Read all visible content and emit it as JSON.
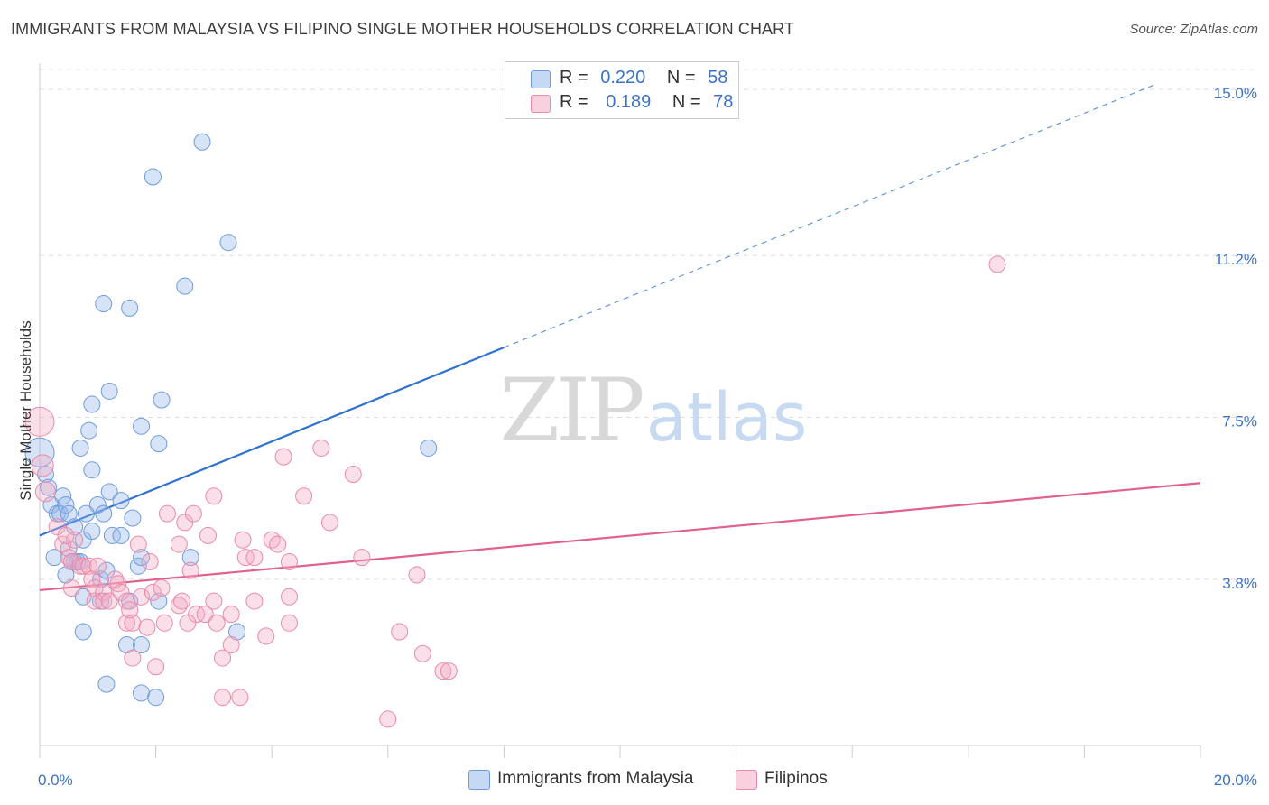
{
  "title": "IMMIGRANTS FROM MALAYSIA VS FILIPINO SINGLE MOTHER HOUSEHOLDS CORRELATION CHART",
  "source": "Source: ZipAtlas.com",
  "watermark": {
    "zip": "ZIP",
    "atlas": "atlas"
  },
  "legend": {
    "r_label": "R =",
    "n_label": "N =",
    "rows": [
      {
        "name": "Immigrants from Malaysia",
        "r": "0.220",
        "n": "58"
      },
      {
        "name": "Filipinos",
        "r": "0.189",
        "n": "78"
      }
    ]
  },
  "chart_data": {
    "type": "scatter",
    "title": "IMMIGRANTS FROM MALAYSIA VS FILIPINO SINGLE MOTHER HOUSEHOLDS CORRELATION CHART",
    "xlabel": "",
    "ylabel": "Single Mother Households",
    "xlim": [
      0,
      20
    ],
    "ylim": [
      0,
      15.6
    ],
    "x_tick_labels": [
      {
        "value": 0,
        "label": "0.0%"
      },
      {
        "value": 20,
        "label": "20.0%"
      }
    ],
    "y_tick_labels": [
      {
        "value": 3.8,
        "label": "3.8%"
      },
      {
        "value": 7.5,
        "label": "7.5%"
      },
      {
        "value": 11.2,
        "label": "11.2%"
      },
      {
        "value": 15.0,
        "label": "15.0%"
      }
    ],
    "y_gridlines": [
      3.8,
      7.5,
      11.2,
      15.0
    ],
    "x_minor_ticks": [
      0,
      2,
      4,
      6,
      8,
      10,
      12,
      14,
      16,
      18,
      20
    ],
    "series": [
      {
        "name": "Immigrants from Malaysia",
        "color": "#8fb4e8",
        "fill": "rgba(150,185,235,0.38)",
        "stroke": "#6f9bdc",
        "line_color": "#2f72d0",
        "trend": {
          "x_start": 0,
          "y_start": 4.8,
          "x_solid_end": 8.0,
          "y_solid_end": 9.1,
          "x_dash_end": 19.2,
          "y_dash_end": 15.1
        },
        "points": [
          [
            0.0,
            6.7,
            16
          ],
          [
            0.1,
            6.2,
            9
          ],
          [
            0.15,
            5.9,
            9
          ],
          [
            0.2,
            5.5,
            9
          ],
          [
            0.3,
            5.3,
            9
          ],
          [
            0.35,
            5.3,
            9
          ],
          [
            0.4,
            5.7,
            9
          ],
          [
            0.45,
            5.5,
            9
          ],
          [
            0.5,
            4.5,
            9
          ],
          [
            0.6,
            4.2,
            9
          ],
          [
            0.25,
            4.3,
            9
          ],
          [
            0.45,
            3.9,
            9
          ],
          [
            0.55,
            4.2,
            9
          ],
          [
            0.65,
            4.2,
            9
          ],
          [
            0.7,
            4.2,
            9
          ],
          [
            0.75,
            4.7,
            9
          ],
          [
            0.7,
            6.8,
            9
          ],
          [
            0.85,
            7.2,
            9
          ],
          [
            0.9,
            7.8,
            9
          ],
          [
            0.9,
            6.3,
            9
          ],
          [
            0.8,
            5.3,
            9
          ],
          [
            0.9,
            4.9,
            9
          ],
          [
            0.75,
            3.4,
            9
          ],
          [
            0.75,
            2.6,
            9
          ],
          [
            1.0,
            5.5,
            9
          ],
          [
            1.05,
            3.8,
            9
          ],
          [
            1.05,
            3.3,
            9
          ],
          [
            1.1,
            5.3,
            9
          ],
          [
            1.15,
            4.0,
            9
          ],
          [
            1.15,
            1.4,
            9
          ],
          [
            1.2,
            8.1,
            9
          ],
          [
            1.2,
            5.8,
            9
          ],
          [
            1.25,
            4.8,
            9
          ],
          [
            1.1,
            10.1,
            9
          ],
          [
            1.4,
            5.6,
            9
          ],
          [
            1.4,
            4.8,
            9
          ],
          [
            1.5,
            2.3,
            9
          ],
          [
            1.55,
            3.3,
            9
          ],
          [
            1.55,
            10.0,
            9
          ],
          [
            1.6,
            5.2,
            9
          ],
          [
            1.7,
            4.1,
            9
          ],
          [
            1.75,
            7.3,
            9
          ],
          [
            1.75,
            4.3,
            9
          ],
          [
            1.75,
            1.2,
            9
          ],
          [
            1.75,
            2.3,
            9
          ],
          [
            1.95,
            13.0,
            9
          ],
          [
            2.0,
            1.1,
            9
          ],
          [
            2.05,
            3.3,
            9
          ],
          [
            2.05,
            6.9,
            9
          ],
          [
            2.1,
            7.9,
            9
          ],
          [
            2.5,
            10.5,
            9
          ],
          [
            2.6,
            4.3,
            9
          ],
          [
            2.8,
            13.8,
            9
          ],
          [
            3.25,
            11.5,
            9
          ],
          [
            3.4,
            2.6,
            9
          ],
          [
            6.7,
            6.8,
            9
          ],
          [
            0.5,
            5.3,
            9
          ],
          [
            0.6,
            5.0,
            9
          ]
        ]
      },
      {
        "name": "Filipinos",
        "color": "#f4b5c8",
        "fill": "rgba(244,170,195,0.38)",
        "stroke": "#e98aa8",
        "line_color": "#e0608e",
        "trend": {
          "x_start": 0,
          "y_start": 3.55,
          "x_solid_end": 20.0,
          "y_solid_end": 6.0
        },
        "points": [
          [
            0.0,
            7.4,
            16
          ],
          [
            0.05,
            6.4,
            12
          ],
          [
            0.1,
            5.8,
            11
          ],
          [
            0.3,
            5.0,
            9
          ],
          [
            0.4,
            4.6,
            9
          ],
          [
            0.5,
            4.3,
            9
          ],
          [
            0.6,
            4.7,
            9
          ],
          [
            0.55,
            4.2,
            9
          ],
          [
            0.7,
            4.1,
            9
          ],
          [
            0.75,
            4.1,
            9
          ],
          [
            0.85,
            4.1,
            9
          ],
          [
            0.9,
            3.8,
            9
          ],
          [
            0.95,
            3.6,
            9
          ],
          [
            0.55,
            3.6,
            9
          ],
          [
            0.95,
            3.3,
            9
          ],
          [
            1.0,
            4.1,
            9
          ],
          [
            1.1,
            3.5,
            9
          ],
          [
            1.1,
            3.3,
            9
          ],
          [
            1.2,
            3.3,
            9
          ],
          [
            1.3,
            3.8,
            9
          ],
          [
            1.35,
            3.7,
            9
          ],
          [
            1.4,
            3.5,
            9
          ],
          [
            1.5,
            3.3,
            9
          ],
          [
            1.5,
            2.8,
            9
          ],
          [
            1.55,
            3.1,
            9
          ],
          [
            1.6,
            2.8,
            9
          ],
          [
            1.6,
            2.0,
            9
          ],
          [
            1.7,
            4.6,
            9
          ],
          [
            1.75,
            3.4,
            9
          ],
          [
            1.85,
            2.7,
            9
          ],
          [
            1.9,
            4.2,
            9
          ],
          [
            1.95,
            3.5,
            9
          ],
          [
            2.0,
            1.8,
            9
          ],
          [
            2.1,
            3.6,
            9
          ],
          [
            2.15,
            2.8,
            9
          ],
          [
            2.2,
            5.3,
            9
          ],
          [
            2.4,
            4.6,
            9
          ],
          [
            2.4,
            3.2,
            9
          ],
          [
            2.45,
            3.3,
            9
          ],
          [
            2.5,
            5.1,
            9
          ],
          [
            2.6,
            4.0,
            9
          ],
          [
            2.65,
            5.3,
            9
          ],
          [
            2.7,
            3.0,
            9
          ],
          [
            2.85,
            3.0,
            9
          ],
          [
            2.9,
            4.8,
            9
          ],
          [
            3.0,
            5.7,
            9
          ],
          [
            3.0,
            3.3,
            9
          ],
          [
            3.05,
            2.8,
            9
          ],
          [
            3.15,
            2.0,
            9
          ],
          [
            3.15,
            1.1,
            9
          ],
          [
            3.3,
            3.0,
            9
          ],
          [
            3.3,
            2.3,
            9
          ],
          [
            3.45,
            1.1,
            9
          ],
          [
            3.5,
            4.7,
            9
          ],
          [
            3.55,
            4.3,
            9
          ],
          [
            3.7,
            4.3,
            9
          ],
          [
            3.7,
            3.3,
            9
          ],
          [
            3.9,
            2.5,
            9
          ],
          [
            4.0,
            4.7,
            9
          ],
          [
            4.1,
            4.6,
            9
          ],
          [
            4.2,
            6.6,
            9
          ],
          [
            4.3,
            4.2,
            9
          ],
          [
            4.3,
            3.4,
            9
          ],
          [
            4.3,
            2.8,
            9
          ],
          [
            4.55,
            5.7,
            9
          ],
          [
            4.85,
            6.8,
            9
          ],
          [
            5.0,
            5.1,
            9
          ],
          [
            5.4,
            6.2,
            9
          ],
          [
            5.55,
            4.3,
            9
          ],
          [
            6.0,
            0.6,
            9
          ],
          [
            6.2,
            2.6,
            9
          ],
          [
            6.5,
            3.9,
            9
          ],
          [
            6.6,
            2.1,
            9
          ],
          [
            6.95,
            1.7,
            9
          ],
          [
            7.05,
            1.7,
            9
          ],
          [
            16.5,
            11.0,
            9
          ],
          [
            0.45,
            4.8,
            9
          ],
          [
            2.55,
            2.8,
            9
          ]
        ]
      }
    ]
  }
}
